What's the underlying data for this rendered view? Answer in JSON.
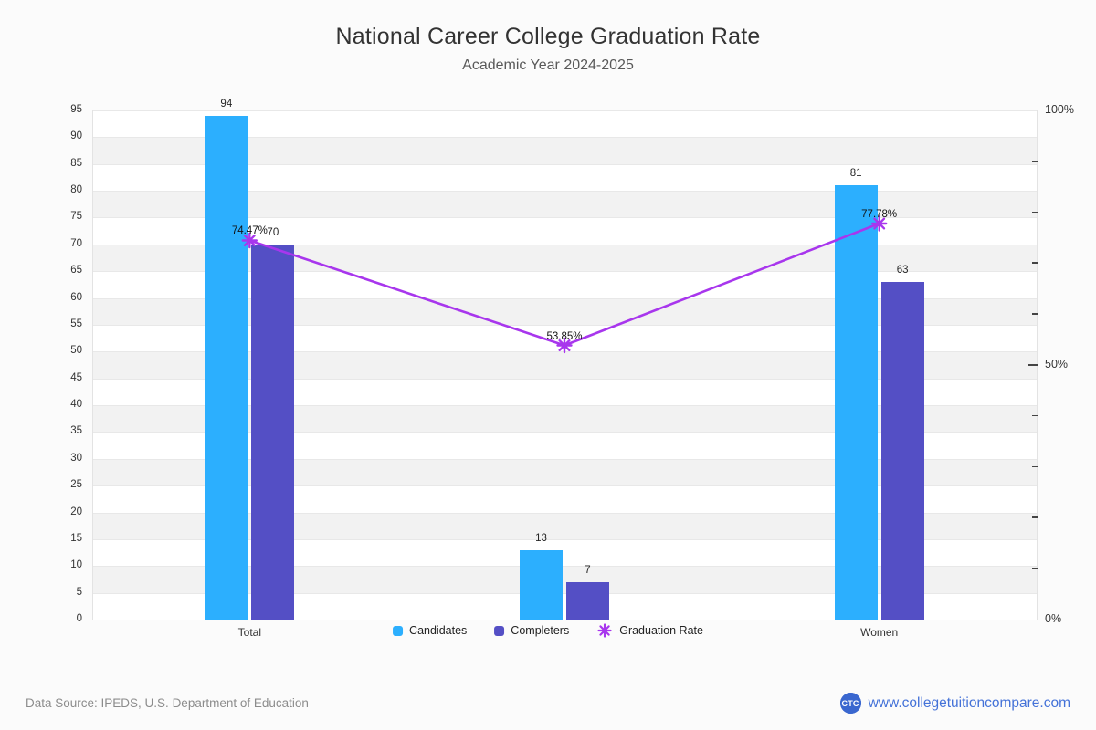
{
  "chart_data": {
    "type": "bar",
    "subtype": "grouped-bars-with-line-overlay",
    "title": "National Career College Graduation Rate",
    "subtitle": "Academic Year 2024-2025",
    "categories": [
      "Total",
      "",
      "Women"
    ],
    "series": [
      {
        "name": "Candidates",
        "type": "bar",
        "marker": "square",
        "color": "#2caffe",
        "values": [
          94,
          13,
          81
        ]
      },
      {
        "name": "Completers",
        "type": "bar",
        "marker": "square",
        "color": "#544fc5",
        "values": [
          70,
          7,
          63
        ]
      },
      {
        "name": "Graduation Rate",
        "type": "line",
        "marker": "asterisk",
        "color": "#a836ed",
        "axis": "right",
        "values": [
          74.47,
          53.85,
          77.78
        ],
        "point_labels": [
          "74.47%",
          "53.85%",
          "77.78%"
        ]
      }
    ],
    "left_axis": {
      "min": 0,
      "max": 95,
      "tick_interval": 5,
      "tick_labels": [
        0,
        5,
        10,
        15,
        20,
        25,
        30,
        35,
        40,
        45,
        50,
        55,
        60,
        65,
        70,
        75,
        80,
        85,
        90,
        95
      ]
    },
    "right_axis": {
      "min": 0,
      "max": 100,
      "minor_tick_every": 10,
      "major_ticks": [
        {
          "value": 0,
          "label": "0%"
        },
        {
          "value": 50,
          "label": "50%"
        },
        {
          "value": 100,
          "label": "100%"
        }
      ]
    },
    "legend_position": "bottom-center",
    "grid": {
      "band_color": "#f2f2f2",
      "line_color": "#e8e8e8",
      "baseline_color": "#d2d2d2"
    }
  },
  "footer": {
    "source_text": "Data Source: IPEDS, U.S. Department of Education"
  },
  "branding": {
    "logo_text": "CTC",
    "website": "www.collegetuitioncompare.com",
    "accent_color": "#4472d8"
  }
}
